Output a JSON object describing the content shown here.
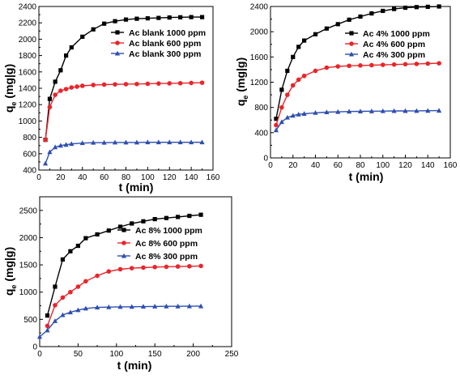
{
  "chart_data": [
    {
      "type": "line",
      "xlabel": "t (min)",
      "ylabel_main": "q",
      "ylabel_sub": "e",
      "ylabel_unit": " (mg|g)",
      "xlim": [
        0,
        160
      ],
      "ylim": [
        400,
        2400
      ],
      "xticks": [
        0,
        20,
        40,
        60,
        80,
        100,
        120,
        140,
        160
      ],
      "yticks": [
        400,
        600,
        800,
        1000,
        1200,
        1400,
        1600,
        1800,
        2000,
        2200,
        2400
      ],
      "legend_position": "top-right",
      "series": [
        {
          "name": "Ac blank 1000 ppm",
          "color": "#000000",
          "marker": "square",
          "x": [
            6,
            10,
            15,
            20,
            25,
            30,
            40,
            50,
            60,
            70,
            80,
            90,
            100,
            110,
            120,
            130,
            140,
            150
          ],
          "y": [
            770,
            1270,
            1480,
            1620,
            1800,
            1900,
            2030,
            2120,
            2190,
            2220,
            2240,
            2250,
            2255,
            2260,
            2265,
            2268,
            2270,
            2270
          ]
        },
        {
          "name": "Ac blank 600 ppm",
          "color": "#e8262a",
          "marker": "circle",
          "x": [
            6,
            10,
            15,
            20,
            25,
            30,
            35,
            40,
            50,
            60,
            70,
            80,
            90,
            100,
            110,
            120,
            130,
            140,
            150
          ],
          "y": [
            770,
            1170,
            1320,
            1370,
            1390,
            1410,
            1420,
            1430,
            1440,
            1445,
            1448,
            1450,
            1452,
            1455,
            1458,
            1460,
            1462,
            1465,
            1468
          ]
        },
        {
          "name": "Ac blank 300 ppm",
          "color": "#2e4fb0",
          "marker": "triangle",
          "x": [
            6,
            10,
            15,
            20,
            25,
            30,
            40,
            50,
            60,
            70,
            80,
            90,
            100,
            110,
            120,
            130,
            140,
            150
          ],
          "y": [
            480,
            620,
            680,
            700,
            710,
            720,
            730,
            735,
            735,
            738,
            738,
            738,
            740,
            740,
            740,
            740,
            740,
            740
          ]
        }
      ]
    },
    {
      "type": "line",
      "xlabel": "t (min)",
      "ylabel_main": "q",
      "ylabel_sub": "e",
      "ylabel_unit": " (mg|g)",
      "xlim": [
        0,
        160
      ],
      "ylim": [
        0,
        2400
      ],
      "xticks": [
        0,
        20,
        40,
        60,
        80,
        100,
        120,
        140,
        160
      ],
      "yticks": [
        0,
        400,
        800,
        1200,
        1600,
        2000,
        2400
      ],
      "legend_position": "top-right",
      "series": [
        {
          "name": "Ac 4% 1000 ppm",
          "color": "#000000",
          "marker": "square",
          "x": [
            5,
            10,
            15,
            20,
            25,
            30,
            40,
            50,
            60,
            70,
            80,
            90,
            100,
            110,
            120,
            130,
            140,
            150
          ],
          "y": [
            620,
            1080,
            1380,
            1600,
            1760,
            1860,
            1960,
            2050,
            2120,
            2190,
            2240,
            2290,
            2330,
            2360,
            2380,
            2390,
            2395,
            2400
          ]
        },
        {
          "name": "Ac 4% 600 ppm",
          "color": "#e8262a",
          "marker": "circle",
          "x": [
            5,
            10,
            15,
            20,
            25,
            30,
            40,
            50,
            60,
            70,
            80,
            90,
            100,
            110,
            120,
            130,
            140,
            150
          ],
          "y": [
            520,
            800,
            1000,
            1150,
            1240,
            1300,
            1380,
            1430,
            1450,
            1460,
            1465,
            1470,
            1475,
            1480,
            1485,
            1490,
            1495,
            1500
          ]
        },
        {
          "name": "Ac 4% 300 ppm",
          "color": "#2e4fb0",
          "marker": "triangle",
          "x": [
            5,
            10,
            15,
            20,
            25,
            30,
            40,
            50,
            60,
            70,
            80,
            90,
            100,
            110,
            120,
            130,
            140,
            150
          ],
          "y": [
            440,
            570,
            640,
            670,
            690,
            700,
            715,
            725,
            730,
            735,
            738,
            740,
            742,
            744,
            745,
            746,
            748,
            750
          ]
        }
      ]
    },
    {
      "type": "line",
      "xlabel": "t (min)",
      "ylabel_main": "q",
      "ylabel_sub": "e",
      "ylabel_unit": " (mg|g)",
      "xlim": [
        0,
        250
      ],
      "ylim": [
        0,
        2750
      ],
      "xticks": [
        0,
        50,
        100,
        150,
        200,
        250
      ],
      "yticks": [
        0,
        500,
        1000,
        1500,
        2000,
        2500
      ],
      "legend_position": "center-right",
      "series": [
        {
          "name": "Ac 8%  1000 ppm",
          "color": "#000000",
          "marker": "square",
          "x": [
            10,
            20,
            30,
            40,
            50,
            60,
            75,
            90,
            105,
            120,
            135,
            150,
            165,
            180,
            195,
            210
          ],
          "y": [
            570,
            1100,
            1600,
            1750,
            1850,
            1990,
            2060,
            2130,
            2200,
            2260,
            2300,
            2340,
            2360,
            2380,
            2400,
            2420
          ]
        },
        {
          "name": "Ac 8%  600 ppm",
          "color": "#e8262a",
          "marker": "circle",
          "x": [
            10,
            20,
            30,
            40,
            50,
            60,
            75,
            90,
            105,
            120,
            135,
            150,
            165,
            180,
            195,
            210
          ],
          "y": [
            380,
            760,
            900,
            1000,
            1100,
            1200,
            1300,
            1380,
            1420,
            1440,
            1450,
            1460,
            1465,
            1470,
            1475,
            1480
          ]
        },
        {
          "name": "Ac 8%  300 ppm",
          "color": "#2e4fb0",
          "marker": "triangle",
          "x": [
            0,
            10,
            20,
            30,
            40,
            50,
            60,
            75,
            90,
            105,
            120,
            135,
            150,
            165,
            180,
            195,
            210
          ],
          "y": [
            180,
            300,
            470,
            580,
            630,
            670,
            700,
            720,
            725,
            730,
            732,
            735,
            738,
            740,
            740,
            742,
            742
          ]
        }
      ]
    }
  ]
}
